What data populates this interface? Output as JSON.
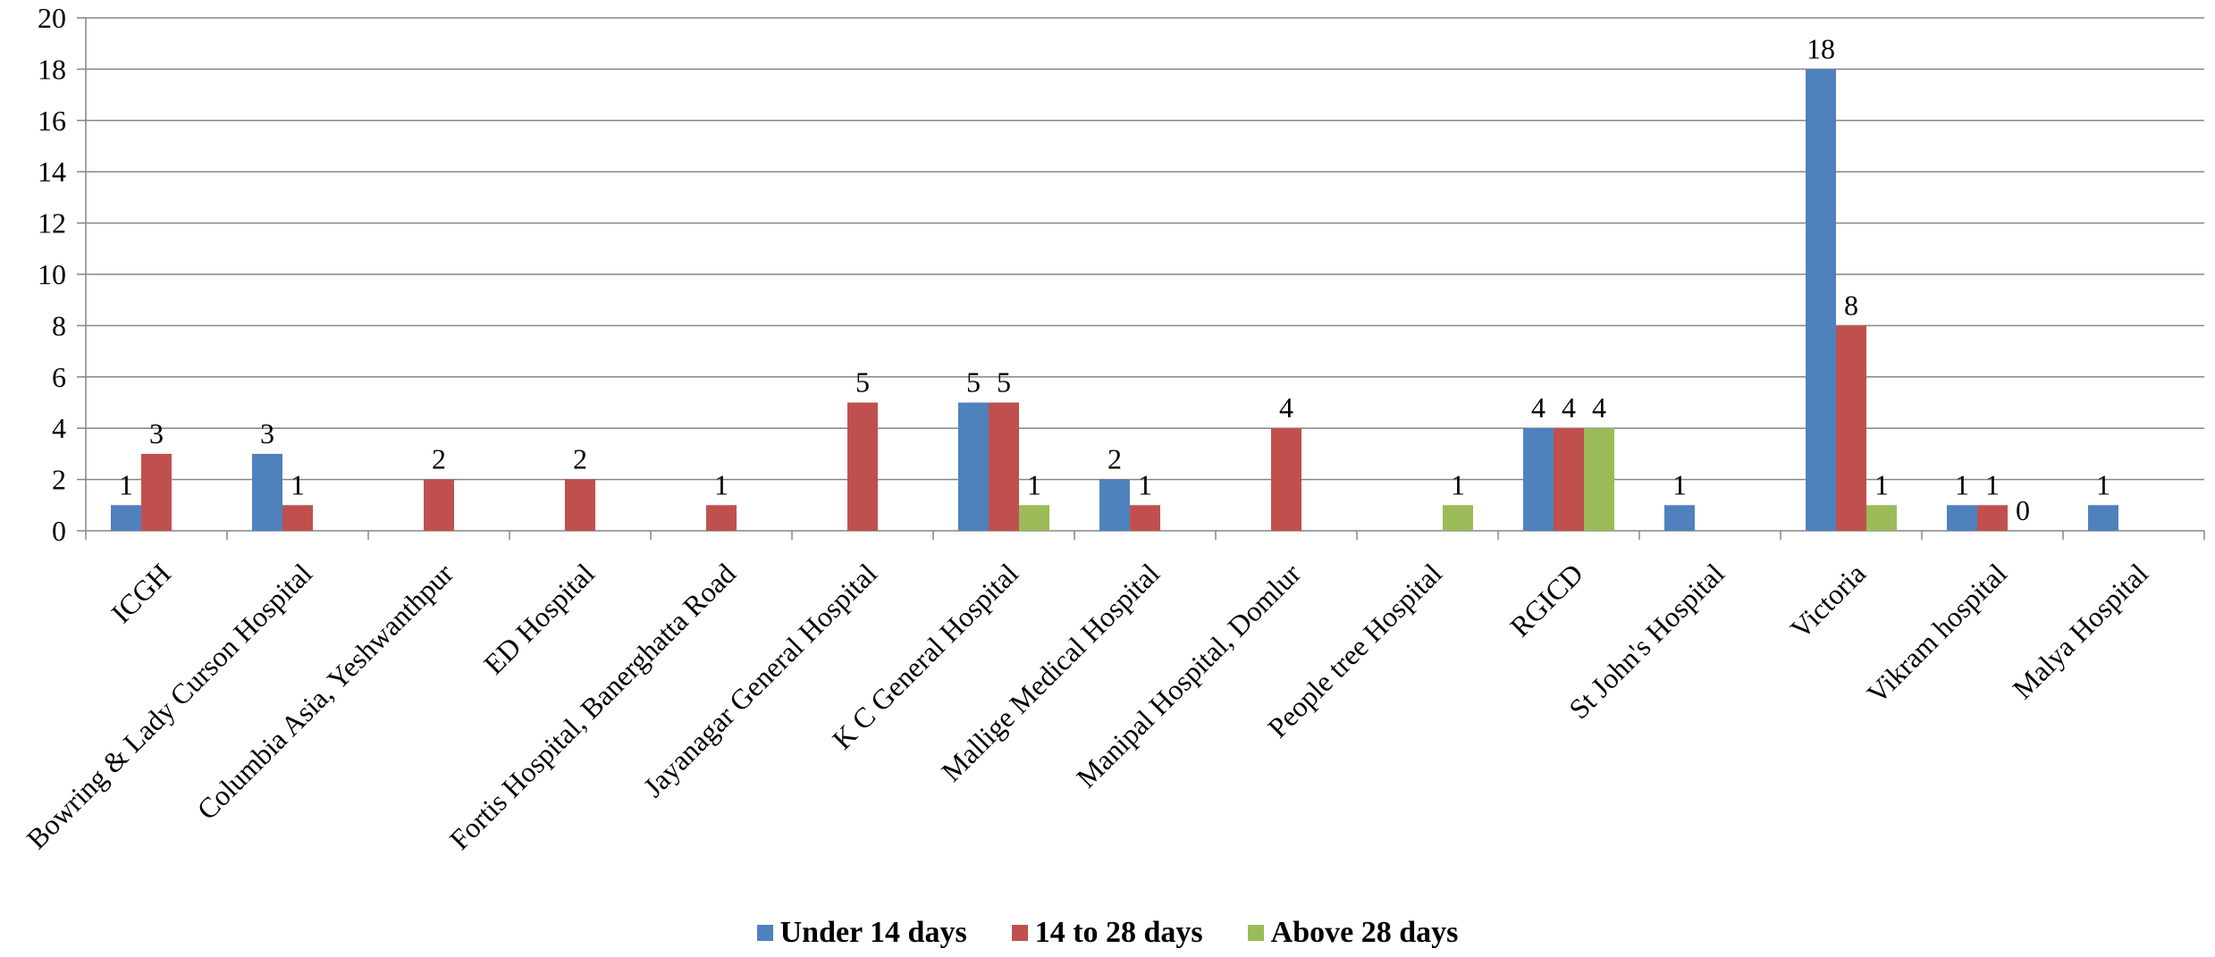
{
  "chart_data": {
    "type": "bar",
    "categories": [
      "ICGH",
      "Bowring & Lady Curson Hospital",
      "Columbia Asia, Yeshwanthpur",
      "ED Hospital",
      "Fortis Hospital, Banerghatta Road",
      "Jayanagar General Hospital",
      "K C General Hospital",
      "Mallige Medical Hospital",
      "Manipal Hospital, Domlur",
      "People tree Hospital",
      "RGICD",
      "St John's Hospital",
      "Victoria",
      "Vikram hospital",
      "Malya Hospital"
    ],
    "series": [
      {
        "name": "Under 14 days",
        "color": "#4F81BD",
        "values": [
          1,
          3,
          null,
          null,
          null,
          null,
          5,
          2,
          null,
          null,
          4,
          1,
          18,
          1,
          1
        ]
      },
      {
        "name": "14 to 28 days",
        "color": "#C0504D",
        "values": [
          3,
          1,
          2,
          2,
          1,
          5,
          5,
          1,
          4,
          null,
          4,
          null,
          8,
          1,
          null
        ]
      },
      {
        "name": "Above 28 days",
        "color": "#9BBB59",
        "values": [
          null,
          null,
          null,
          null,
          null,
          null,
          1,
          null,
          null,
          1,
          4,
          null,
          1,
          0,
          null
        ]
      }
    ],
    "ylim": [
      0,
      20
    ],
    "yticks": [
      0,
      2,
      4,
      6,
      8,
      10,
      12,
      14,
      16,
      18,
      20
    ],
    "grid": true,
    "legend_position": "bottom",
    "title": "",
    "xlabel": "",
    "ylabel": ""
  }
}
